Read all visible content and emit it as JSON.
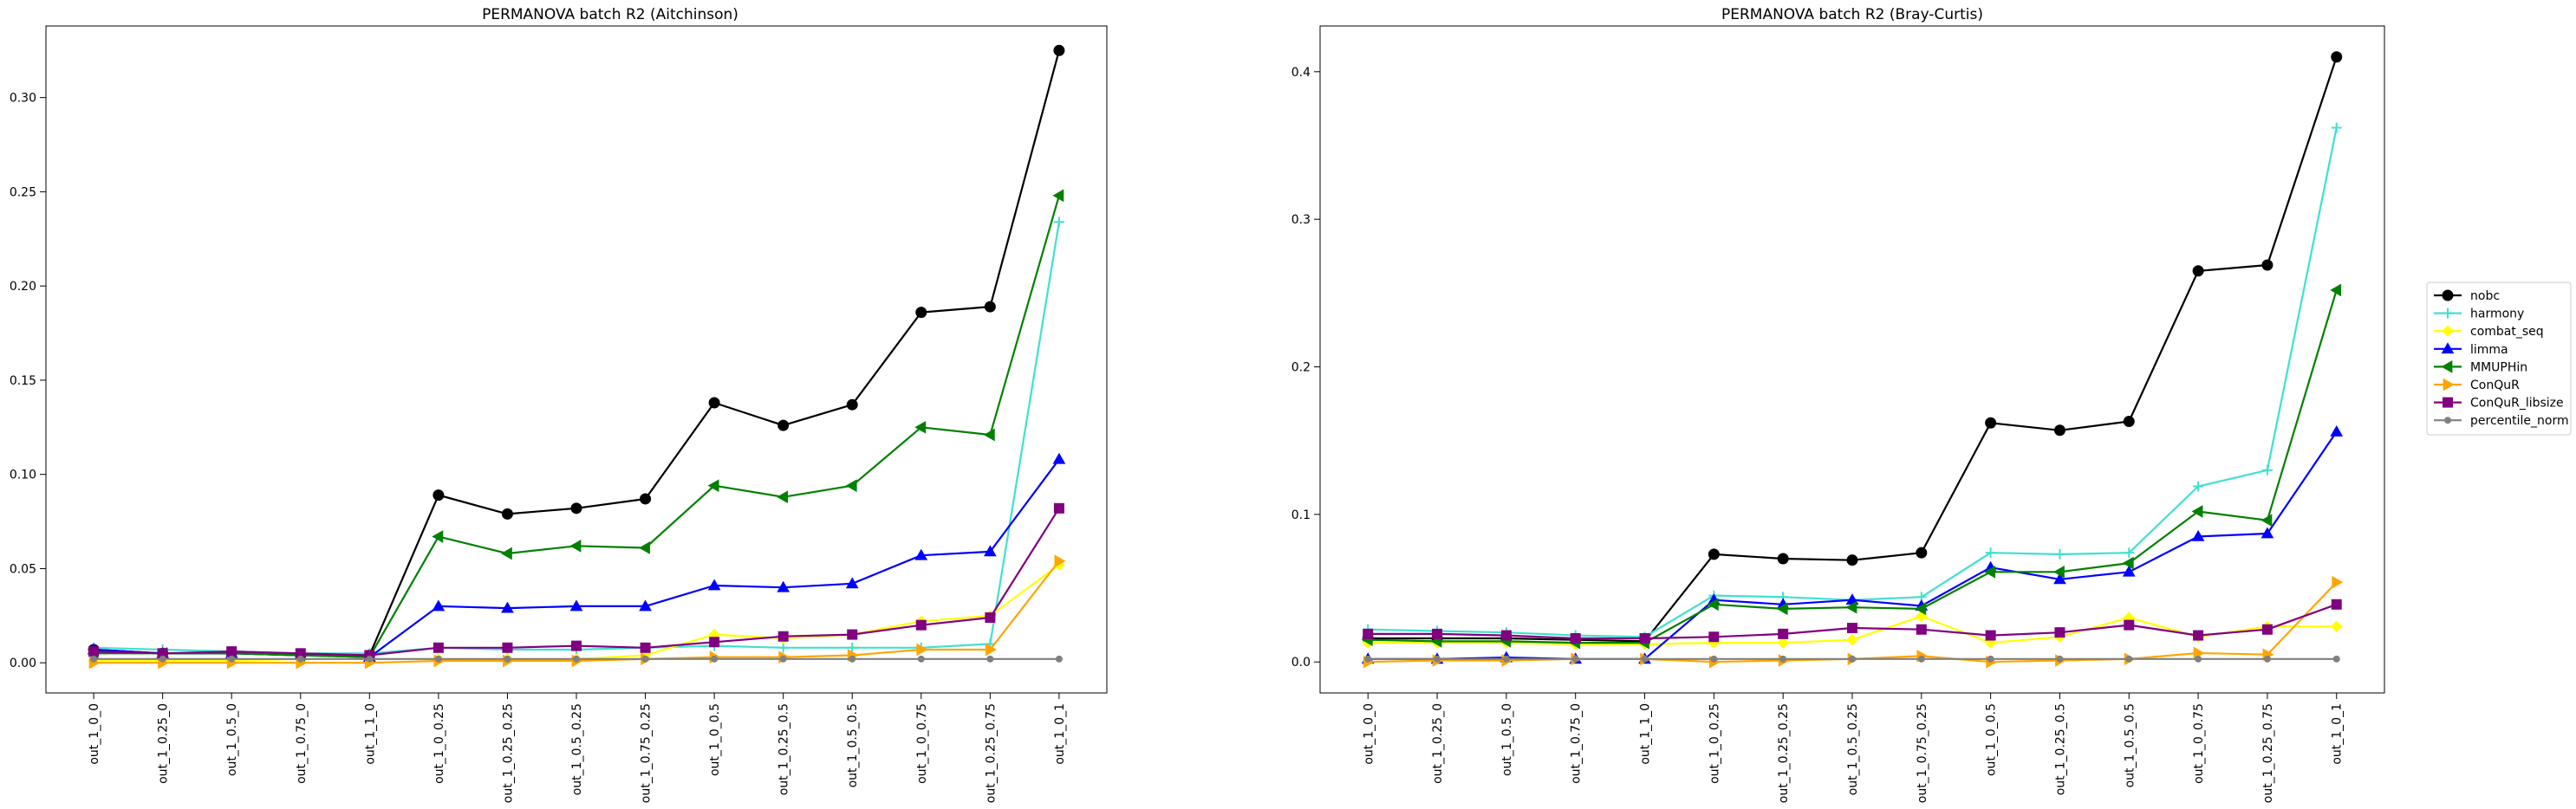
{
  "colors": {
    "nobc": "#000000",
    "harmony": "#40e0d0",
    "combat_seq": "#ffff00",
    "limma": "#0000ff",
    "MMUPHin": "#008000",
    "ConQuR": "#ffa500",
    "ConQuR_libsize": "#800080",
    "percentile_norm": "#808080"
  },
  "legend": {
    "entries": [
      {
        "name": "nobc",
        "marker": "o"
      },
      {
        "name": "harmony",
        "marker": "+"
      },
      {
        "name": "combat_seq",
        "marker": "D"
      },
      {
        "name": "limma",
        "marker": "^"
      },
      {
        "name": "MMUPHin",
        "marker": "<"
      },
      {
        "name": "ConQuR",
        "marker": ">"
      },
      {
        "name": "ConQuR_libsize",
        "marker": "s"
      },
      {
        "name": "percentile_norm",
        "marker": "."
      }
    ],
    "placement": "right-center"
  },
  "chart_data": [
    {
      "type": "line",
      "title": "PERMANOVA batch R2 (Aitchinson)",
      "xlabel": "",
      "ylabel": "",
      "categories": [
        "out_1_0_0",
        "out_1_0.25_0",
        "out_1_0.5_0",
        "out_1_0.75_0",
        "out_1_1_0",
        "out_1_0_0.25",
        "out_1_0.25_0.25",
        "out_1_0.5_0.25",
        "out_1_0.75_0.25",
        "out_1_0_0.5",
        "out_1_0.25_0.5",
        "out_1_0.5_0.5",
        "out_1_0_0.75",
        "out_1_0.25_0.75",
        "out_1_0_1"
      ],
      "ylim": [
        -0.016,
        0.338
      ],
      "yticks": [
        0.0,
        0.05,
        0.1,
        0.15,
        0.2,
        0.25,
        0.3
      ],
      "ytick_labels": [
        "0.00",
        "0.05",
        "0.10",
        "0.15",
        "0.20",
        "0.25",
        "0.30"
      ],
      "grid": false,
      "series": [
        {
          "name": "nobc",
          "values": [
            0.007,
            0.005,
            0.005,
            0.004,
            0.004,
            0.089,
            0.079,
            0.082,
            0.087,
            0.138,
            0.126,
            0.137,
            0.186,
            0.189,
            0.325
          ]
        },
        {
          "name": "harmony",
          "values": [
            0.008,
            0.007,
            0.006,
            0.005,
            0.005,
            0.008,
            0.007,
            0.007,
            0.008,
            0.009,
            0.008,
            0.008,
            0.008,
            0.01,
            0.234
          ]
        },
        {
          "name": "combat_seq",
          "values": [
            0.001,
            0.001,
            0.001,
            0.002,
            0.002,
            0.002,
            0.002,
            0.002,
            0.004,
            0.015,
            0.013,
            0.015,
            0.022,
            0.025,
            0.052
          ]
        },
        {
          "name": "limma",
          "values": [
            0.007,
            0.005,
            0.005,
            0.004,
            0.003,
            0.03,
            0.029,
            0.03,
            0.03,
            0.041,
            0.04,
            0.042,
            0.057,
            0.059,
            0.108
          ]
        },
        {
          "name": "MMUPHin",
          "values": [
            0.005,
            0.005,
            0.005,
            0.004,
            0.003,
            0.067,
            0.058,
            0.062,
            0.061,
            0.094,
            0.088,
            0.094,
            0.125,
            0.121,
            0.248
          ]
        },
        {
          "name": "ConQuR",
          "values": [
            0.0,
            0.0,
            0.0,
            0.0,
            0.0,
            0.001,
            0.001,
            0.001,
            0.002,
            0.003,
            0.003,
            0.004,
            0.007,
            0.007,
            0.054
          ]
        },
        {
          "name": "ConQuR_libsize",
          "values": [
            0.006,
            0.005,
            0.006,
            0.005,
            0.004,
            0.008,
            0.008,
            0.009,
            0.008,
            0.011,
            0.014,
            0.015,
            0.02,
            0.024,
            0.082
          ]
        },
        {
          "name": "percentile_norm",
          "values": [
            0.002,
            0.002,
            0.002,
            0.002,
            0.002,
            0.002,
            0.002,
            0.002,
            0.002,
            0.002,
            0.002,
            0.002,
            0.002,
            0.002,
            0.002
          ]
        }
      ]
    },
    {
      "type": "line",
      "title": "PERMANOVA batch R2 (Bray-Curtis)",
      "xlabel": "",
      "ylabel": "",
      "categories": [
        "out_1_0_0",
        "out_1_0.25_0",
        "out_1_0.5_0",
        "out_1_0.75_0",
        "out_1_1_0",
        "out_1_0_0.25",
        "out_1_0.25_0.25",
        "out_1_0.5_0.25",
        "out_1_0.75_0.25",
        "out_1_0_0.5",
        "out_1_0.25_0.5",
        "out_1_0.5_0.5",
        "out_1_0_0.75",
        "out_1_0.25_0.75",
        "out_1_0_1"
      ],
      "ylim": [
        -0.021,
        0.431
      ],
      "yticks": [
        0.0,
        0.1,
        0.2,
        0.3,
        0.4
      ],
      "ytick_labels": [
        "0.0",
        "0.1",
        "0.2",
        "0.3",
        "0.4"
      ],
      "grid": false,
      "series": [
        {
          "name": "nobc",
          "values": [
            0.016,
            0.016,
            0.016,
            0.015,
            0.014,
            0.073,
            0.07,
            0.069,
            0.074,
            0.162,
            0.157,
            0.163,
            0.265,
            0.269,
            0.41
          ]
        },
        {
          "name": "harmony",
          "values": [
            0.022,
            0.021,
            0.02,
            0.018,
            0.017,
            0.045,
            0.044,
            0.042,
            0.044,
            0.074,
            0.073,
            0.074,
            0.119,
            0.13,
            0.362
          ]
        },
        {
          "name": "combat_seq",
          "values": [
            0.013,
            0.013,
            0.013,
            0.012,
            0.012,
            0.013,
            0.013,
            0.015,
            0.031,
            0.013,
            0.017,
            0.03,
            0.017,
            0.024,
            0.024
          ]
        },
        {
          "name": "limma",
          "values": [
            0.002,
            0.002,
            0.003,
            0.002,
            0.002,
            0.042,
            0.039,
            0.042,
            0.038,
            0.064,
            0.056,
            0.061,
            0.085,
            0.087,
            0.156
          ]
        },
        {
          "name": "MMUPHin",
          "values": [
            0.015,
            0.014,
            0.014,
            0.013,
            0.013,
            0.039,
            0.036,
            0.037,
            0.036,
            0.061,
            0.061,
            0.067,
            0.102,
            0.096,
            0.252
          ]
        },
        {
          "name": "ConQuR",
          "values": [
            0.0,
            0.001,
            0.001,
            0.002,
            0.002,
            0.0,
            0.001,
            0.002,
            0.004,
            0.0,
            0.001,
            0.002,
            0.006,
            0.005,
            0.054
          ]
        },
        {
          "name": "ConQuR_libsize",
          "values": [
            0.019,
            0.019,
            0.018,
            0.016,
            0.016,
            0.017,
            0.019,
            0.023,
            0.022,
            0.018,
            0.02,
            0.025,
            0.018,
            0.022,
            0.039
          ]
        },
        {
          "name": "percentile_norm",
          "values": [
            0.002,
            0.002,
            0.002,
            0.002,
            0.002,
            0.002,
            0.002,
            0.002,
            0.002,
            0.002,
            0.002,
            0.002,
            0.002,
            0.002,
            0.002
          ]
        }
      ]
    }
  ]
}
